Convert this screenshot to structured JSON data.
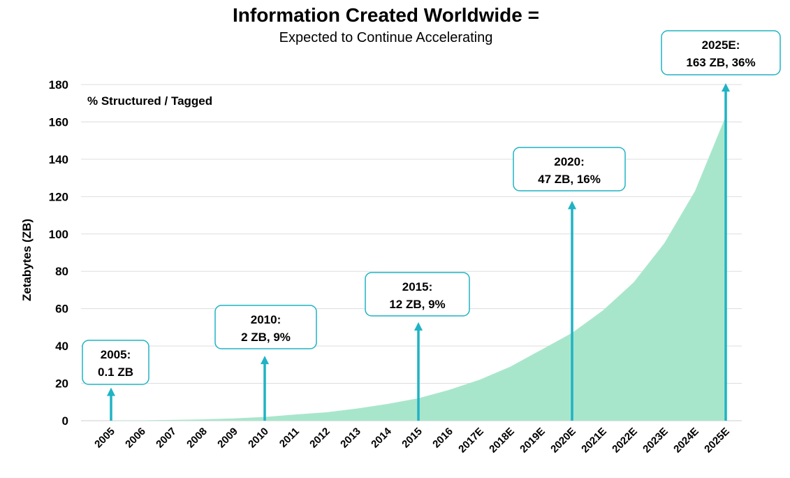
{
  "chart_data": {
    "type": "area",
    "title": "Information Created Worldwide =",
    "subtitle": "Expected to Continue Accelerating",
    "ylabel": "Zetabytes (ZB)",
    "xlabel": "",
    "ylim": [
      0,
      180
    ],
    "yticks": [
      "0",
      "20",
      "40",
      "60",
      "80",
      "100",
      "120",
      "140",
      "160",
      "180"
    ],
    "grid": true,
    "note": "% Structured / Tagged",
    "categories": [
      "2005",
      "2006",
      "2007",
      "2008",
      "2009",
      "2010",
      "2011",
      "2012",
      "2013",
      "2014",
      "2015",
      "2016",
      "2017E",
      "2018E",
      "2019E",
      "2020E",
      "2021E",
      "2022E",
      "2023E",
      "2024E",
      "2025E"
    ],
    "series": [
      {
        "values": [
          0.1,
          0.2,
          0.4,
          0.7,
          1.2,
          2,
          3.3,
          4.5,
          6.5,
          9,
          12,
          16.5,
          22,
          29,
          38,
          47,
          59,
          74,
          95,
          123,
          163
        ]
      }
    ],
    "annotations": [
      {
        "index": 0,
        "year_label": "2005:",
        "value_label": "0.1 ZB",
        "arrow_to": 17
      },
      {
        "index": 5,
        "year_label": "2010:",
        "value_label": "2 ZB, 9%",
        "arrow_to": 34
      },
      {
        "index": 10,
        "year_label": "2015:",
        "value_label": "12 ZB, 9%",
        "arrow_to": 52
      },
      {
        "index": 15,
        "year_label": "2020:",
        "value_label": "47 ZB, 16%",
        "arrow_to": 117
      },
      {
        "index": 20,
        "year_label": "2025E:",
        "value_label": "163 ZB, 36%",
        "arrow_to": 180
      }
    ],
    "colors": {
      "area": "#a8e6cc",
      "arrow": "#1fb3c4",
      "callout_border": "#1fb3c4",
      "grid": "#dddddd"
    }
  }
}
